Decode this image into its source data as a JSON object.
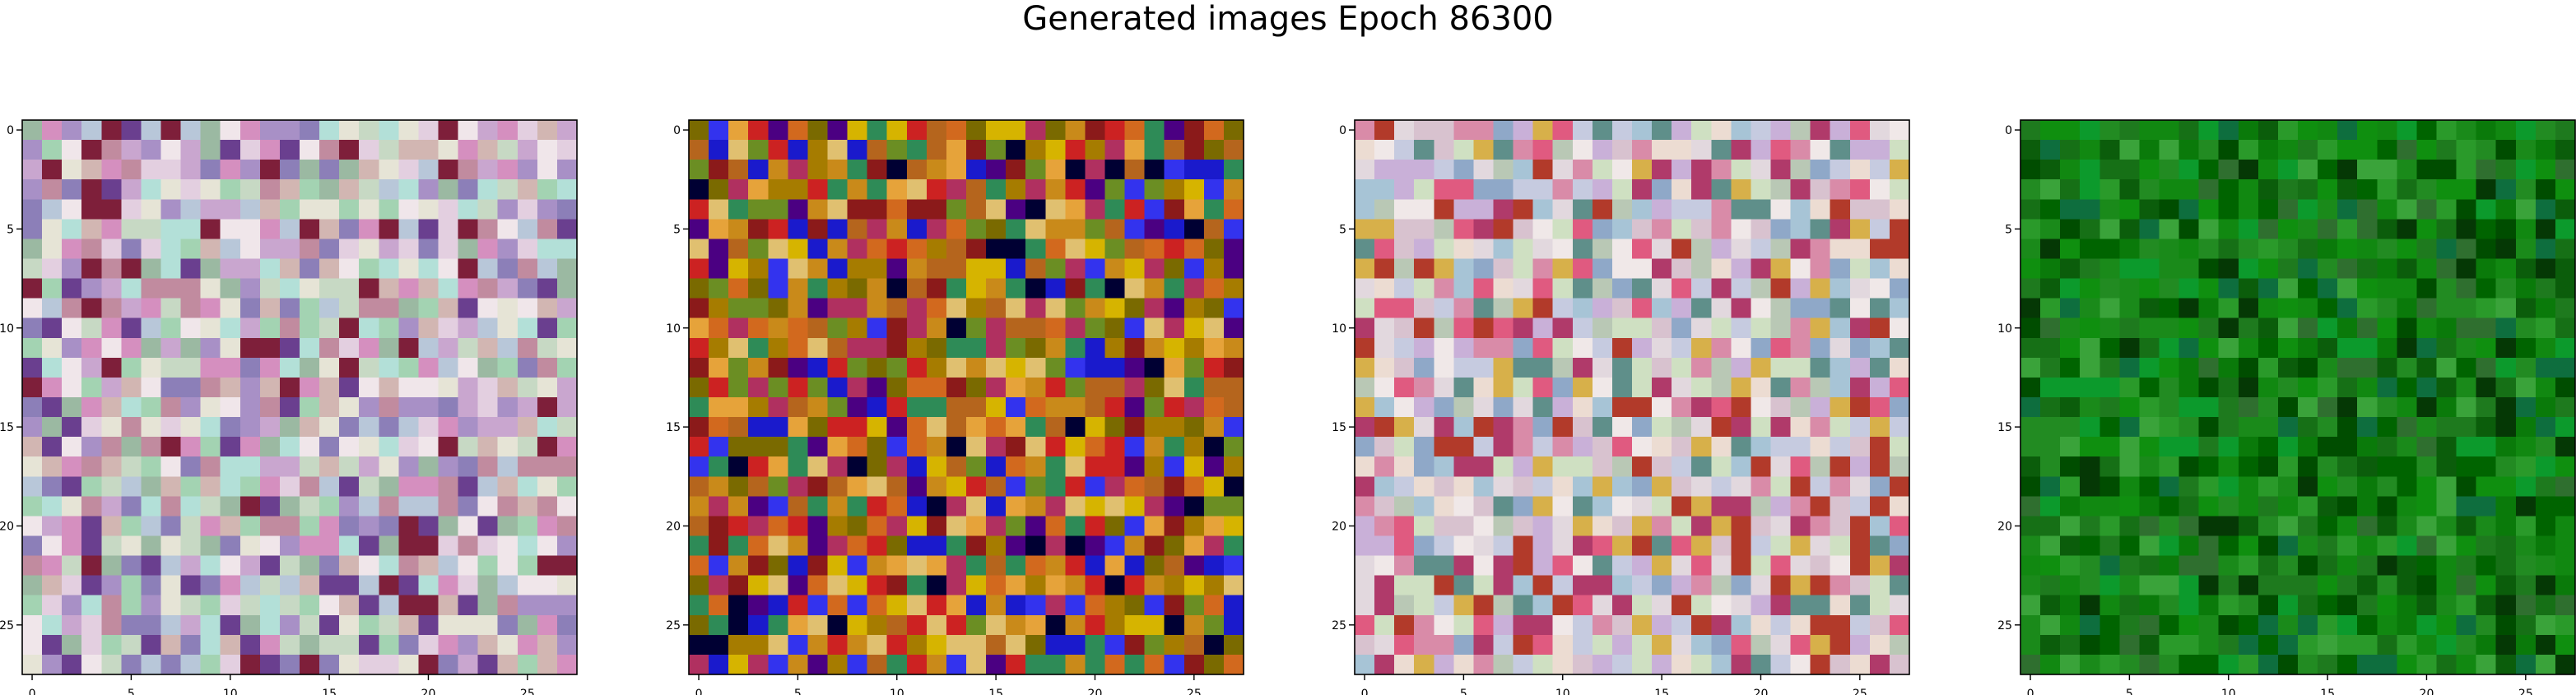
{
  "figure": {
    "title": "Generated images Epoch 86300"
  },
  "chart_data": [
    {
      "type": "heatmap",
      "rows": 28,
      "cols": 28,
      "xlim": [
        -0.5,
        27.5
      ],
      "ylim": [
        27.5,
        -0.5
      ],
      "xticks": [
        0,
        5,
        10,
        15,
        20,
        25
      ],
      "yticks": [
        0,
        5,
        10,
        15,
        20,
        25
      ],
      "palette": [
        "#c9a6cf",
        "#b8c7d9",
        "#e3cfe0",
        "#9bb9a2",
        "#d58fbf",
        "#a890c6",
        "#e6e4d6",
        "#c7d9c4",
        "#8c7fb8",
        "#d2b6b2",
        "#b3e0d8",
        "#7e1f3a",
        "#f0e6ea",
        "#6a3f8f",
        "#a3d3b2",
        "#c18b9f"
      ],
      "seed": 11
    },
    {
      "type": "heatmap",
      "rows": 28,
      "cols": 28,
      "xlim": [
        -0.5,
        27.5
      ],
      "ylim": [
        27.5,
        -0.5
      ],
      "xticks": [
        0,
        5,
        10,
        15,
        20,
        25
      ],
      "yticks": [
        0,
        5,
        10,
        15,
        20,
        25
      ],
      "palette": [
        "#c98a1a",
        "#b5651d",
        "#a67c00",
        "#d6b400",
        "#7a6a00",
        "#1a1acc",
        "#3333ee",
        "#8b1a1a",
        "#cc2222",
        "#e6a33a",
        "#6b8e23",
        "#b03060",
        "#4b0082",
        "#d2691e",
        "#e0c070",
        "#2e8b57",
        "#000033"
      ],
      "seed": 23
    },
    {
      "type": "heatmap",
      "rows": 28,
      "cols": 28,
      "xlim": [
        -0.5,
        27.5
      ],
      "ylim": [
        27.5,
        -0.5
      ],
      "xticks": [
        0,
        5,
        10,
        15,
        20,
        25
      ],
      "yticks": [
        0,
        5,
        10,
        15,
        20,
        25
      ],
      "palette": [
        "#d8c2cf",
        "#c6cbe0",
        "#e2d8de",
        "#b9c8b5",
        "#d98ba8",
        "#c9b0d8",
        "#ecdcd2",
        "#a7c4d6",
        "#8fa8c8",
        "#e05a80",
        "#b23a2a",
        "#d7b04a",
        "#5f8f8a",
        "#cfe0c2",
        "#b03a6a",
        "#f0e8e8"
      ],
      "seed": 37
    },
    {
      "type": "heatmap",
      "rows": 28,
      "cols": 28,
      "xlim": [
        -0.5,
        27.5
      ],
      "ylim": [
        27.5,
        -0.5
      ],
      "xticks": [
        0,
        5,
        10,
        15,
        20,
        25
      ],
      "yticks": [
        0,
        5,
        10,
        15,
        20,
        25
      ],
      "palette": [
        "#0a7a0a",
        "#0f8f0f",
        "#006400",
        "#118811",
        "#1e7a1e",
        "#2a9a2a",
        "#0b5d0b",
        "#167016",
        "#3aa33a",
        "#004d00",
        "#0c9a2c",
        "#228b22",
        "#2f6f2f",
        "#0e6e3e",
        "#1a8a1a",
        "#053805"
      ],
      "seed": 53
    }
  ]
}
